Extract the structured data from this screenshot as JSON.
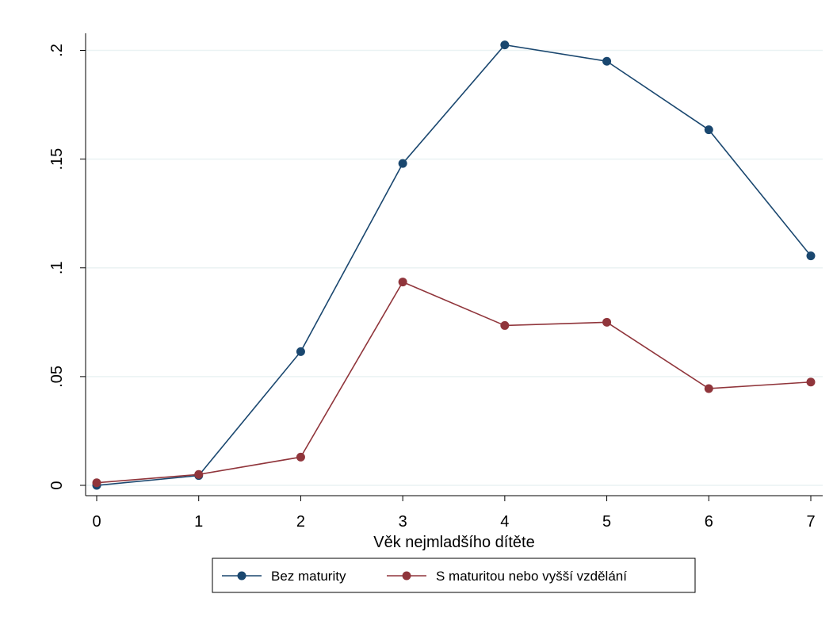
{
  "chart_data": {
    "type": "line",
    "title": "",
    "xlabel": "Věk nejmladšího dítěte",
    "ylabel": "",
    "x": [
      0,
      1,
      2,
      3,
      4,
      5,
      6,
      7
    ],
    "x_tick_labels": [
      "0",
      "1",
      "2",
      "3",
      "4",
      "5",
      "6",
      "7"
    ],
    "y_ticks": [
      0,
      0.05,
      0.1,
      0.15,
      0.2
    ],
    "y_tick_labels": [
      "0",
      ".05",
      ".1",
      ".15",
      ".2"
    ],
    "xlim": [
      0,
      7
    ],
    "ylim": [
      0,
      0.2
    ],
    "grid": "horizontal",
    "legend_position": "bottom",
    "series": [
      {
        "name": "Bez maturity",
        "color": "#1a476f",
        "values": [
          0.0,
          0.0045,
          0.0615,
          0.148,
          0.2025,
          0.195,
          0.1635,
          0.1055
        ]
      },
      {
        "name": "S maturitou nebo vyšší vzdělání",
        "color": "#90353b",
        "values": [
          0.0012,
          0.005,
          0.013,
          0.0935,
          0.0735,
          0.075,
          0.0445,
          0.0475
        ]
      }
    ]
  }
}
